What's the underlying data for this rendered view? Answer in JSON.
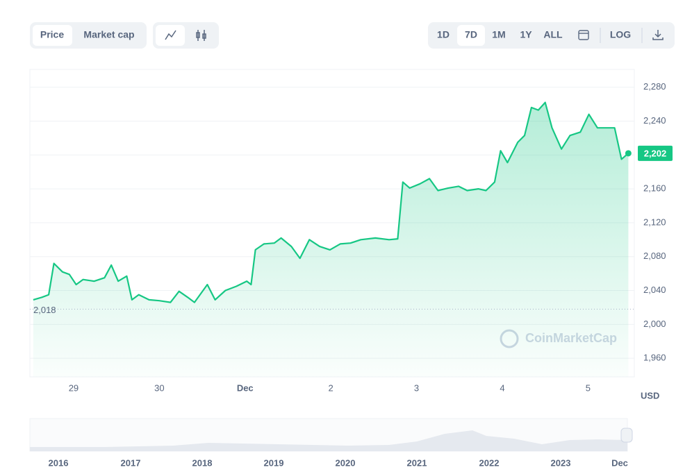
{
  "toolbar": {
    "metric_tabs": [
      "Price",
      "Market cap"
    ],
    "ranges": [
      "1D",
      "7D",
      "1M",
      "1Y",
      "ALL"
    ],
    "scale": "LOG"
  },
  "chart_data": {
    "type": "line",
    "color": "#16c784",
    "grid": true,
    "watermark": "CoinMarketCap",
    "y_unit": "USD",
    "x": [
      28.53,
      28.63,
      28.71,
      28.77,
      28.87,
      28.95,
      29.03,
      29.11,
      29.24,
      29.36,
      29.44,
      29.52,
      29.62,
      29.68,
      29.76,
      29.88,
      30.0,
      30.13,
      30.23,
      30.33,
      30.41,
      30.56,
      30.65,
      30.77,
      30.9,
      31.02,
      31.07,
      31.12,
      31.22,
      31.34,
      31.42,
      31.54,
      31.64,
      31.75,
      31.87,
      31.99,
      32.11,
      32.23,
      32.35,
      32.52,
      32.68,
      32.78,
      32.84,
      32.92,
      33.04,
      33.15,
      33.25,
      33.37,
      33.49,
      33.59,
      33.72,
      33.81,
      33.91,
      33.98,
      34.06,
      34.18,
      34.26,
      34.34,
      34.42,
      34.5,
      34.58,
      34.69,
      34.79,
      34.91,
      35.01,
      35.11,
      35.23,
      35.31,
      35.39,
      35.47
    ],
    "values": [
      2029,
      2032,
      2035,
      2072,
      2062,
      2059,
      2047,
      2053,
      2051,
      2055,
      2070,
      2051,
      2057,
      2029,
      2035,
      2029,
      2028,
      2026,
      2039,
      2032,
      2026,
      2047,
      2029,
      2040,
      2045,
      2051,
      2047,
      2088,
      2095,
      2096,
      2102,
      2092,
      2078,
      2100,
      2092,
      2088,
      2095,
      2096,
      2100,
      2102,
      2100,
      2101,
      2168,
      2161,
      2166,
      2172,
      2158,
      2161,
      2163,
      2158,
      2160,
      2158,
      2168,
      2205,
      2191,
      2215,
      2223,
      2256,
      2253,
      2262,
      2232,
      2207,
      2223,
      2227,
      2248,
      2232,
      2232,
      2232,
      2195,
      2202
    ],
    "xlim": [
      28.49,
      35.54
    ],
    "xticks": [
      {
        "value": 29,
        "label": "29"
      },
      {
        "value": 30,
        "label": "30"
      },
      {
        "value": 31,
        "label": "Dec"
      },
      {
        "value": 32,
        "label": "2"
      },
      {
        "value": 33,
        "label": "3"
      },
      {
        "value": 34,
        "label": "4"
      },
      {
        "value": 35,
        "label": "5"
      }
    ],
    "ylim": [
      1938,
      2301
    ],
    "yticks": [
      {
        "value": 1960,
        "label": "1,960"
      },
      {
        "value": 2000,
        "label": "2,000"
      },
      {
        "value": 2040,
        "label": "2,040"
      },
      {
        "value": 2080,
        "label": "2,080"
      },
      {
        "value": 2120,
        "label": "2,120"
      },
      {
        "value": 2160,
        "label": "2,160"
      },
      {
        "value": 2200,
        "label": "2,200"
      },
      {
        "value": 2240,
        "label": "2,240"
      },
      {
        "value": 2280,
        "label": "2,280"
      }
    ],
    "reference": {
      "value": 2018,
      "label": "2,018"
    },
    "current_price": {
      "value": 2202,
      "label": "2,202"
    }
  },
  "navigator": {
    "labels": [
      "2016",
      "2017",
      "2018",
      "2019",
      "2020",
      "2021",
      "2022",
      "2023",
      "Dec"
    ]
  }
}
